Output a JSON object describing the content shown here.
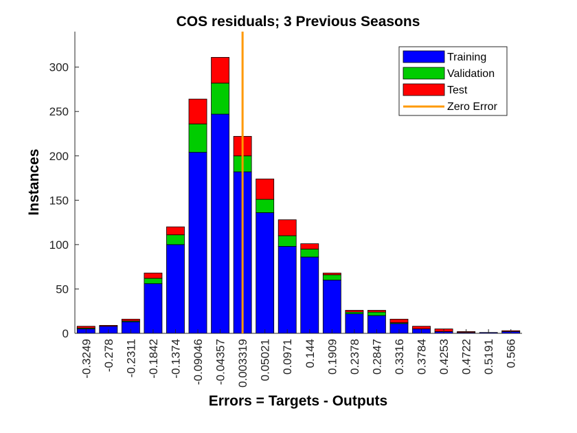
{
  "chart_data": {
    "type": "bar",
    "stacked": true,
    "title": "COS residuals; 3 Previous Seasons",
    "xlabel": "Errors = Targets - Outputs",
    "ylabel": "Instances",
    "ylim": [
      0,
      340
    ],
    "yticks": [
      0,
      50,
      100,
      150,
      200,
      250,
      300
    ],
    "grid": false,
    "legend_position": "top-right",
    "categories": [
      "-0.3249",
      "-0.278",
      "-0.2311",
      "-0.1842",
      "-0.1374",
      "-0.09046",
      "-0.04357",
      "0.003319",
      "0.05021",
      "0.0971",
      "0.144",
      "0.1909",
      "0.2378",
      "0.2847",
      "0.3316",
      "0.3784",
      "0.4253",
      "0.4722",
      "0.5191",
      "0.566"
    ],
    "series": [
      {
        "name": "Training",
        "color": "#0000ff",
        "values": [
          5,
          8,
          13,
          56,
          100,
          204,
          247,
          182,
          136,
          98,
          86,
          60,
          22,
          20,
          11,
          5,
          2,
          1,
          1,
          2
        ]
      },
      {
        "name": "Validation",
        "color": "#00cc00",
        "values": [
          1,
          0,
          1,
          6,
          11,
          32,
          35,
          18,
          15,
          12,
          9,
          6,
          2,
          4,
          1,
          0,
          0,
          0,
          0,
          0
        ]
      },
      {
        "name": "Test",
        "color": "#ff0000",
        "values": [
          2,
          1,
          2,
          6,
          9,
          28,
          29,
          22,
          23,
          18,
          6,
          2,
          2,
          2,
          4,
          3,
          3,
          1,
          0,
          1
        ]
      }
    ],
    "reference_line": {
      "name": "Zero Error",
      "color": "#ff9900",
      "x_category_index": 7
    }
  }
}
